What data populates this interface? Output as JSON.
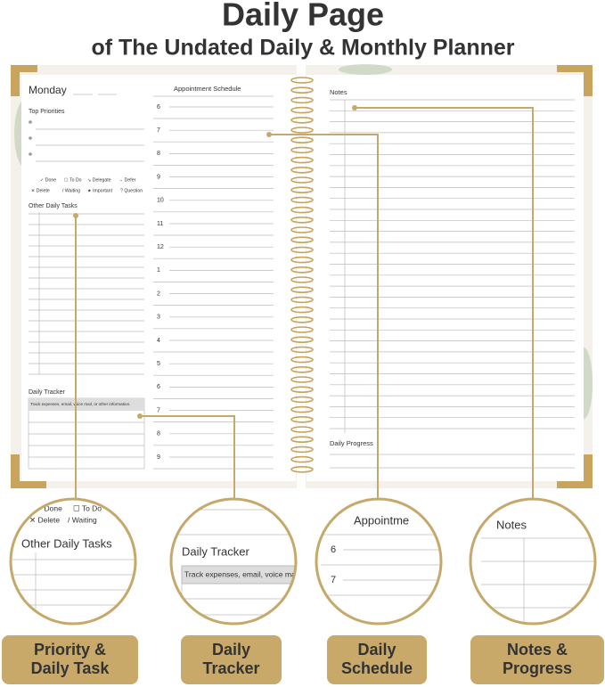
{
  "header": {
    "title": "Daily Page",
    "subtitle": "of The Undated Daily & Monthly Planner"
  },
  "left_page": {
    "day": "Monday",
    "top_priorities": "Top Priorities",
    "legend": [
      "✓ Done",
      "☐ To Do",
      "↘ Delegate",
      "→ Defer",
      "✕ Delete",
      "/ Waiting",
      "★ Important",
      "? Question"
    ],
    "other_tasks": "Other Daily Tasks",
    "tracker": {
      "title": "Daily Tracker",
      "hint": "Track expenses, email, voice mail, or other information."
    }
  },
  "schedule": {
    "title": "Appointment Schedule",
    "hours": [
      6,
      7,
      8,
      9,
      10,
      11,
      12,
      1,
      2,
      3,
      4,
      5,
      6,
      7,
      8,
      9
    ]
  },
  "right_page": {
    "notes": "Notes",
    "progress": "Daily Progress"
  },
  "zooms": [
    {
      "legend": [
        "✓ Done",
        "☐ To Do",
        "✕ Delete",
        "/ Waiting"
      ],
      "title": "Other Daily Tasks"
    },
    {
      "title": "Daily Tracker",
      "hint": "Track expenses, email, voice mai"
    },
    {
      "title": "Appointme",
      "hours": [
        6,
        7
      ]
    },
    {
      "title": "Notes"
    }
  ],
  "labels": [
    [
      "Priority &",
      "Daily Task"
    ],
    [
      "Daily",
      "Tracker"
    ],
    [
      "Daily",
      "Schedule"
    ],
    [
      "Notes &",
      "Progress"
    ]
  ]
}
